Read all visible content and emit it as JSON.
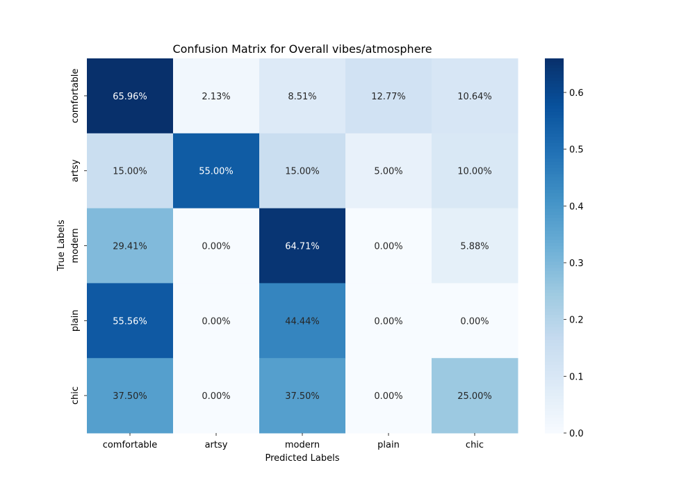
{
  "chart_data": {
    "type": "heatmap",
    "title": "Confusion Matrix for Overall vibes/atmosphere",
    "xlabel": "Predicted Labels",
    "ylabel": "True Labels",
    "x_categories": [
      "comfortable",
      "artsy",
      "modern",
      "plain",
      "chic"
    ],
    "y_categories": [
      "comfortable",
      "artsy",
      "modern",
      "plain",
      "chic"
    ],
    "values": [
      [
        0.6596,
        0.0213,
        0.0851,
        0.1277,
        0.1064
      ],
      [
        0.15,
        0.55,
        0.15,
        0.05,
        0.1
      ],
      [
        0.2941,
        0.0,
        0.6471,
        0.0,
        0.0588
      ],
      [
        0.5556,
        0.0,
        0.4444,
        0.0,
        0.0
      ],
      [
        0.375,
        0.0,
        0.375,
        0.0,
        0.25
      ]
    ],
    "annotations": [
      [
        "65.96%",
        "2.13%",
        "8.51%",
        "12.77%",
        "10.64%"
      ],
      [
        "15.00%",
        "55.00%",
        "15.00%",
        "5.00%",
        "10.00%"
      ],
      [
        "29.41%",
        "0.00%",
        "64.71%",
        "0.00%",
        "5.88%"
      ],
      [
        "55.56%",
        "0.00%",
        "44.44%",
        "0.00%",
        "0.00%"
      ],
      [
        "37.50%",
        "0.00%",
        "37.50%",
        "0.00%",
        "25.00%"
      ]
    ],
    "colormap": "Blues",
    "vmin": 0.0,
    "vmax": 0.66,
    "colorbar_ticks": [
      "0.0",
      "0.1",
      "0.2",
      "0.3",
      "0.4",
      "0.5",
      "0.6"
    ],
    "colorbar_tick_values": [
      0.0,
      0.1,
      0.2,
      0.3,
      0.4,
      0.5,
      0.6
    ],
    "colors": {
      "blues_low": "#f7fbff",
      "blues_high": "#08306b",
      "text_dark": "#262626",
      "text_light": "#ffffff"
    }
  }
}
